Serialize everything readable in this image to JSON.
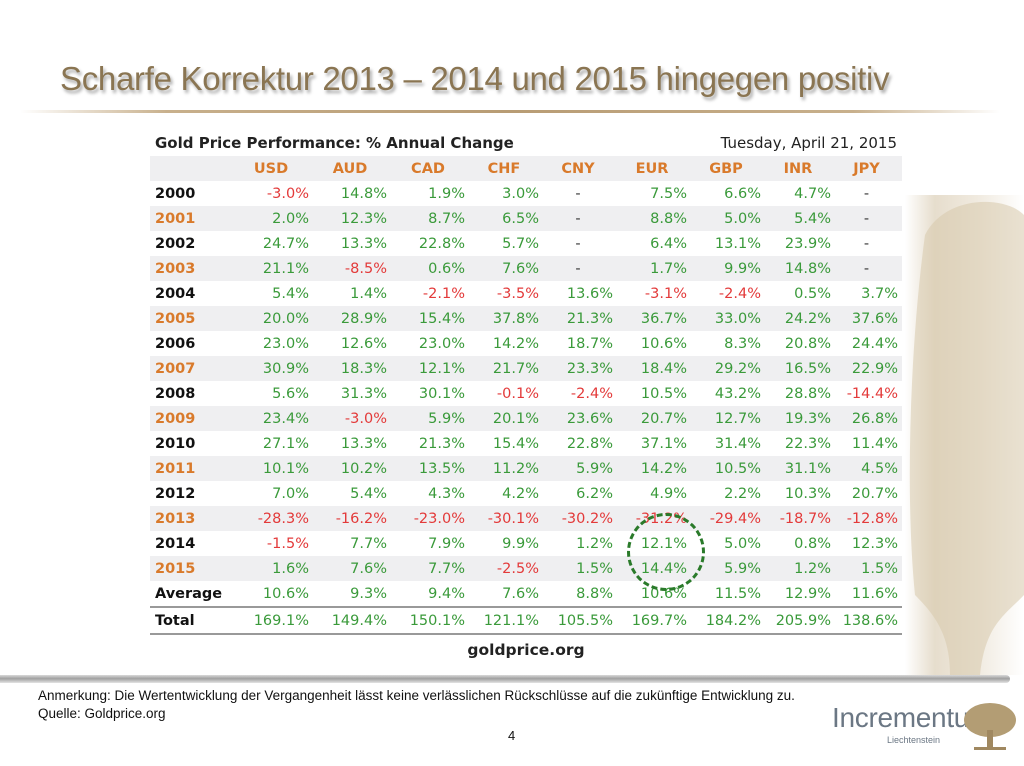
{
  "slide": {
    "title": "Scharfe Korrektur 2013 – 2014 und 2015 hingegen positiv",
    "note": "Anmerkung: Die Wertentwicklung der Vergangenheit lässt keine verlässlichen Rückschlüsse auf die zukünftige Entwicklung zu.",
    "source_line": "Quelle: Goldprice.org",
    "page_number": "4",
    "logo_text": "Incrementum",
    "logo_sub": "Liechtenstein"
  },
  "table": {
    "title": "Gold Price Performance: % Annual Change",
    "date": "Tuesday, April 21, 2015",
    "columns": [
      "USD",
      "AUD",
      "CAD",
      "CHF",
      "CNY",
      "EUR",
      "GBP",
      "INR",
      "JPY"
    ],
    "rows": [
      {
        "year": "2000",
        "values": [
          "-3.0%",
          "14.8%",
          "1.9%",
          "3.0%",
          "-",
          "7.5%",
          "6.6%",
          "4.7%",
          "-"
        ]
      },
      {
        "year": "2001",
        "values": [
          "2.0%",
          "12.3%",
          "8.7%",
          "6.5%",
          "-",
          "8.8%",
          "5.0%",
          "5.4%",
          "-"
        ]
      },
      {
        "year": "2002",
        "values": [
          "24.7%",
          "13.3%",
          "22.8%",
          "5.7%",
          "-",
          "6.4%",
          "13.1%",
          "23.9%",
          "-"
        ]
      },
      {
        "year": "2003",
        "values": [
          "21.1%",
          "-8.5%",
          "0.6%",
          "7.6%",
          "-",
          "1.7%",
          "9.9%",
          "14.8%",
          "-"
        ]
      },
      {
        "year": "2004",
        "values": [
          "5.4%",
          "1.4%",
          "-2.1%",
          "-3.5%",
          "13.6%",
          "-3.1%",
          "-2.4%",
          "0.5%",
          "3.7%"
        ]
      },
      {
        "year": "2005",
        "values": [
          "20.0%",
          "28.9%",
          "15.4%",
          "37.8%",
          "21.3%",
          "36.7%",
          "33.0%",
          "24.2%",
          "37.6%"
        ]
      },
      {
        "year": "2006",
        "values": [
          "23.0%",
          "12.6%",
          "23.0%",
          "14.2%",
          "18.7%",
          "10.6%",
          "8.3%",
          "20.8%",
          "24.4%"
        ]
      },
      {
        "year": "2007",
        "values": [
          "30.9%",
          "18.3%",
          "12.1%",
          "21.7%",
          "23.3%",
          "18.4%",
          "29.2%",
          "16.5%",
          "22.9%"
        ]
      },
      {
        "year": "2008",
        "values": [
          "5.6%",
          "31.3%",
          "30.1%",
          "-0.1%",
          "-2.4%",
          "10.5%",
          "43.2%",
          "28.8%",
          "-14.4%"
        ]
      },
      {
        "year": "2009",
        "values": [
          "23.4%",
          "-3.0%",
          "5.9%",
          "20.1%",
          "23.6%",
          "20.7%",
          "12.7%",
          "19.3%",
          "26.8%"
        ]
      },
      {
        "year": "2010",
        "values": [
          "27.1%",
          "13.3%",
          "21.3%",
          "15.4%",
          "22.8%",
          "37.1%",
          "31.4%",
          "22.3%",
          "11.4%"
        ]
      },
      {
        "year": "2011",
        "values": [
          "10.1%",
          "10.2%",
          "13.5%",
          "11.2%",
          "5.9%",
          "14.2%",
          "10.5%",
          "31.1%",
          "4.5%"
        ]
      },
      {
        "year": "2012",
        "values": [
          "7.0%",
          "5.4%",
          "4.3%",
          "4.2%",
          "6.2%",
          "4.9%",
          "2.2%",
          "10.3%",
          "20.7%"
        ]
      },
      {
        "year": "2013",
        "values": [
          "-28.3%",
          "-16.2%",
          "-23.0%",
          "-30.1%",
          "-30.2%",
          "-31.2%",
          "-29.4%",
          "-18.7%",
          "-12.8%"
        ]
      },
      {
        "year": "2014",
        "values": [
          "-1.5%",
          "7.7%",
          "7.9%",
          "9.9%",
          "1.2%",
          "12.1%",
          "5.0%",
          "0.8%",
          "12.3%"
        ]
      },
      {
        "year": "2015",
        "values": [
          "1.6%",
          "7.6%",
          "7.7%",
          "-2.5%",
          "1.5%",
          "14.4%",
          "5.9%",
          "1.2%",
          "1.5%"
        ]
      }
    ],
    "average": {
      "label": "Average",
      "values": [
        "10.6%",
        "9.3%",
        "9.4%",
        "7.6%",
        "8.8%",
        "10.6%",
        "11.5%",
        "12.9%",
        "11.6%"
      ]
    },
    "total": {
      "label": "Total",
      "values": [
        "169.1%",
        "149.4%",
        "150.1%",
        "121.1%",
        "105.5%",
        "169.7%",
        "184.2%",
        "205.9%",
        "138.6%"
      ]
    },
    "source": "goldprice.org"
  },
  "colors": {
    "positive": "#3a9a3a",
    "negative": "#e33a3a",
    "header_accent": "#d97a2b",
    "title": "#8a7552",
    "highlight_circle": "#2a7a2a"
  }
}
